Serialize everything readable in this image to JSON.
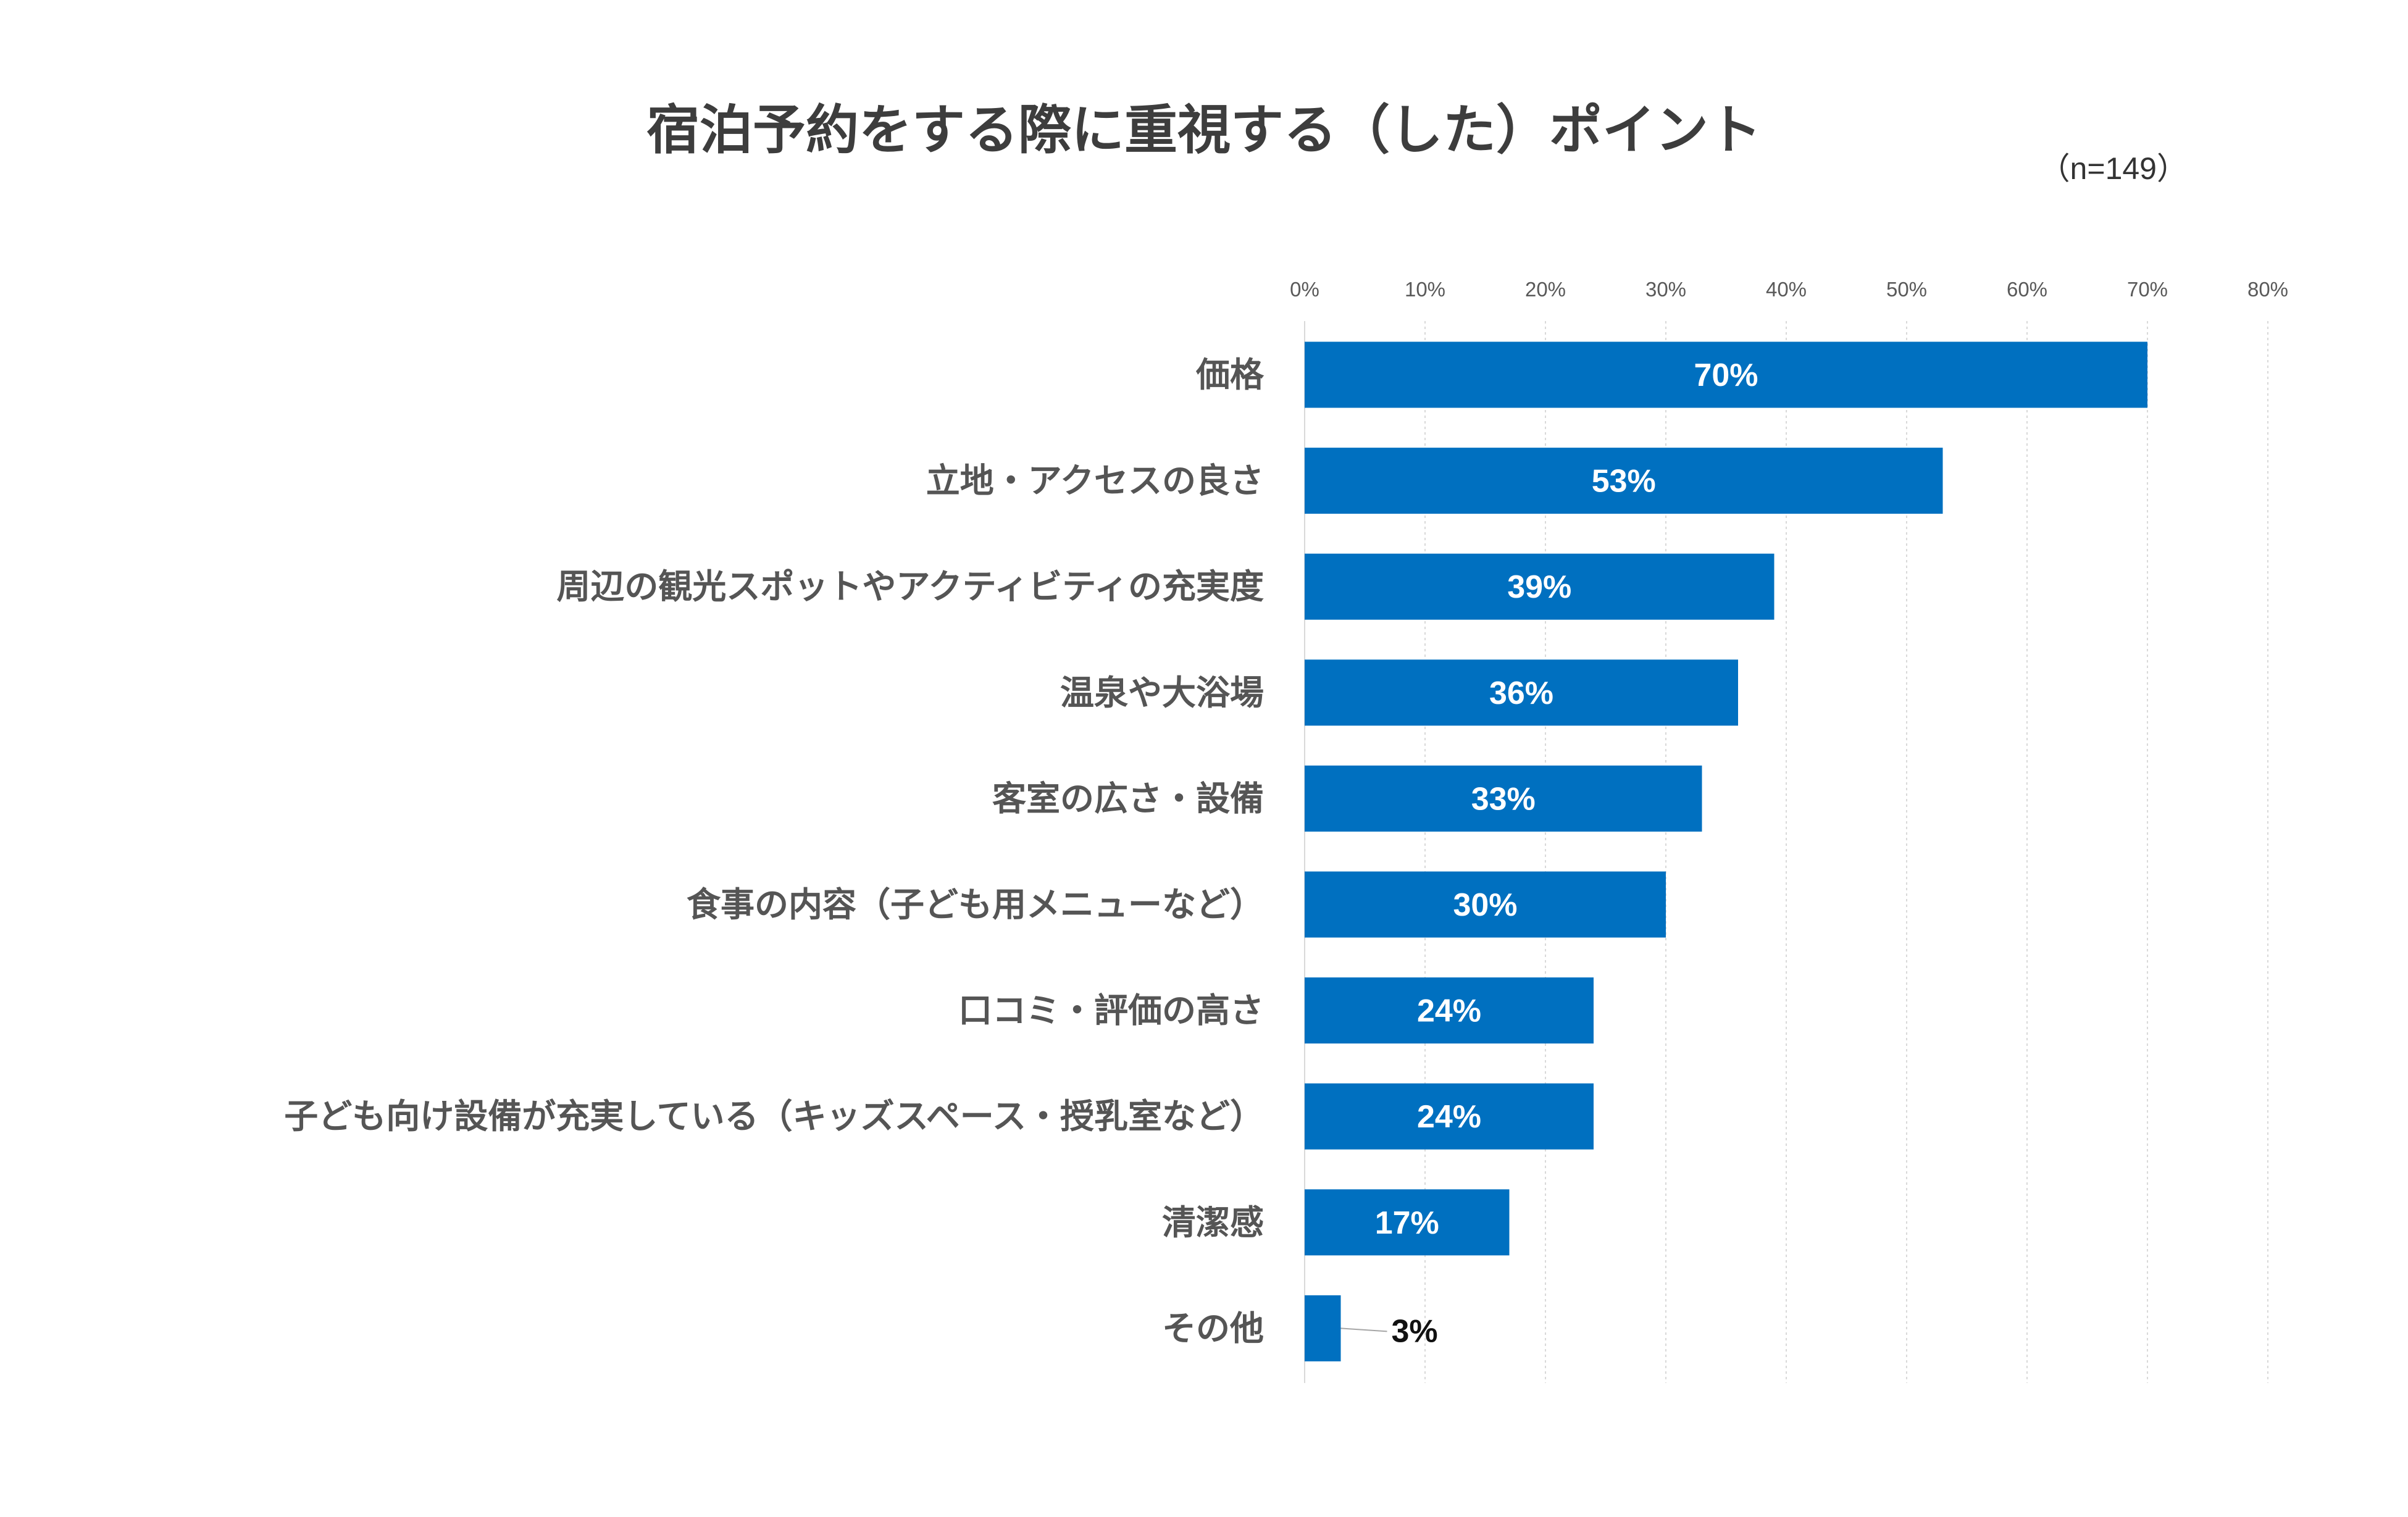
{
  "chart_data": {
    "type": "bar",
    "orientation": "horizontal",
    "title": "宿泊予約をする際に重視する（した）ポイント",
    "sample_size": "（n=149）",
    "xlim": [
      0,
      80
    ],
    "tick_values": [
      0,
      10,
      20,
      30,
      40,
      50,
      60,
      70,
      80
    ],
    "tick_labels": [
      "0%",
      "10%",
      "20%",
      "30%",
      "40%",
      "50%",
      "60%",
      "70%",
      "80%"
    ],
    "categories": [
      "価格",
      "立地・アクセスの良さ",
      "周辺の観光スポットやアクティビティの充実度",
      "温泉や大浴場",
      "客室の広さ・設備",
      "食事の内容（子ども用メニューなど）",
      "口コミ・評価の高さ",
      "子ども向け設備が充実している（キッズスペース・授乳室など）",
      "清潔感",
      "その他"
    ],
    "values": [
      70,
      53,
      39,
      36,
      33,
      30,
      24,
      24,
      17,
      3
    ],
    "value_labels": [
      "70%",
      "53%",
      "39%",
      "36%",
      "33%",
      "30%",
      "24%",
      "24%",
      "17%",
      "3%"
    ],
    "grid": true,
    "legend": "none"
  },
  "colors": {
    "bar": "#0070c0",
    "title": "#3d3d3d",
    "category_text": "#555555",
    "grid": "#d9d9d9"
  }
}
